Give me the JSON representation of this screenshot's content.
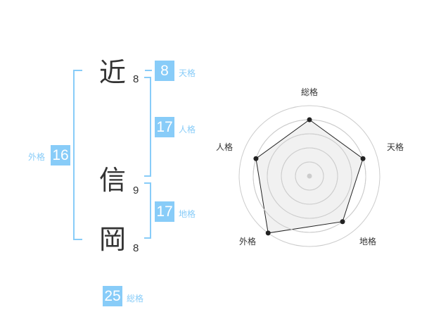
{
  "name": {
    "characters": [
      {
        "char": "近",
        "strokes": "8"
      },
      {
        "char": "信",
        "strokes": "9"
      },
      {
        "char": "岡",
        "strokes": "8"
      }
    ]
  },
  "fortunes": {
    "tenkaku": {
      "label": "天格",
      "value": "8"
    },
    "jinkaku": {
      "label": "人格",
      "value": "17"
    },
    "chikaku": {
      "label": "地格",
      "value": "17"
    },
    "gaikaku": {
      "label": "外格",
      "value": "16"
    },
    "soukaku": {
      "label": "総格",
      "value": "25"
    }
  },
  "colors": {
    "accent": "#88ccf8",
    "text": "#333333",
    "radar_fill": "#f0f0f0"
  },
  "chart_data": {
    "type": "radar",
    "axes": [
      "総格",
      "天格",
      "地格",
      "外格",
      "人格"
    ],
    "values": [
      4,
      4,
      4,
      5,
      4
    ],
    "range": [
      0,
      5
    ],
    "rings": 5
  }
}
